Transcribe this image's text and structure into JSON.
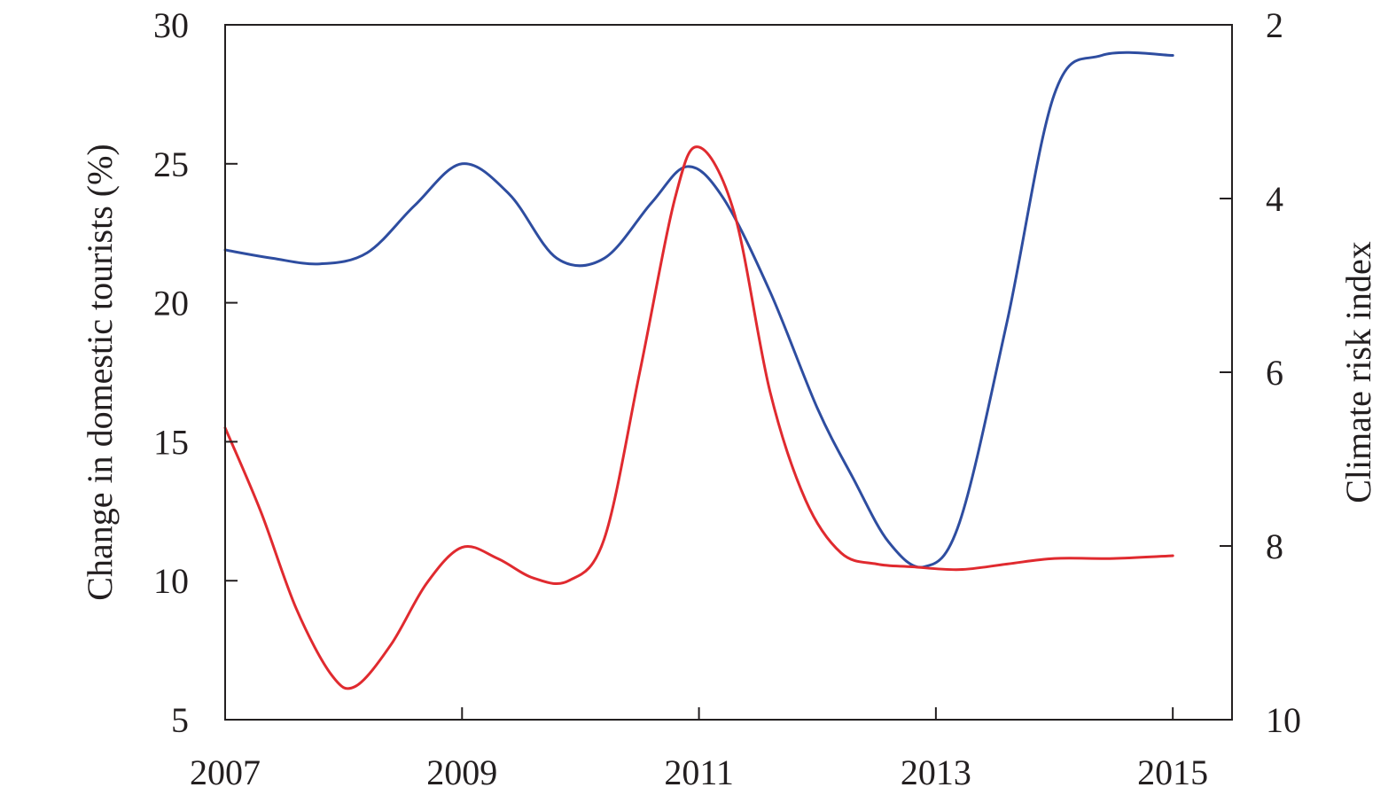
{
  "chart_data": {
    "type": "line",
    "x_axis": {
      "label": "",
      "min": 2007,
      "max": 2015.5,
      "ticks": [
        2007,
        2009,
        2011,
        2013,
        2015
      ],
      "tick_labels": [
        "2007",
        "2009",
        "2011",
        "2013",
        "2015"
      ]
    },
    "y_axis_left": {
      "label": "Change in domestic tourists (%)",
      "min": 5,
      "max": 30,
      "ticks": [
        5,
        10,
        15,
        20,
        25,
        30
      ],
      "tick_labels": [
        "5",
        "10",
        "15",
        "20",
        "25",
        "30"
      ]
    },
    "y_axis_right": {
      "label": "Climate risk index",
      "min": 2,
      "max": 10,
      "inverted": true,
      "ticks": [
        2,
        4,
        6,
        8,
        10
      ],
      "tick_labels": [
        "2",
        "4",
        "6",
        "8",
        "10"
      ]
    },
    "series": [
      {
        "axis": "left",
        "color": "#2e4da0",
        "points": [
          [
            2007,
            21.9
          ],
          [
            2007.4,
            21.6
          ],
          [
            2007.8,
            21.4
          ],
          [
            2008.2,
            21.8
          ],
          [
            2008.6,
            23.5
          ],
          [
            2009,
            25.0
          ],
          [
            2009.4,
            23.9
          ],
          [
            2009.8,
            21.6
          ],
          [
            2010.2,
            21.6
          ],
          [
            2010.6,
            23.6
          ],
          [
            2010.9,
            24.9
          ],
          [
            2011.2,
            23.8
          ],
          [
            2011.6,
            20.4
          ],
          [
            2012,
            16.2
          ],
          [
            2012.3,
            13.7
          ],
          [
            2012.6,
            11.4
          ],
          [
            2012.9,
            10.5
          ],
          [
            2013.2,
            12.1
          ],
          [
            2013.6,
            19.3
          ],
          [
            2014,
            27.5
          ],
          [
            2014.4,
            28.9
          ],
          [
            2015,
            28.9
          ]
        ]
      },
      {
        "axis": "left",
        "color": "#e02a2f",
        "points": [
          [
            2007,
            15.5
          ],
          [
            2007.3,
            12.5
          ],
          [
            2007.6,
            9.0
          ],
          [
            2007.9,
            6.6
          ],
          [
            2008.1,
            6.2
          ],
          [
            2008.4,
            7.7
          ],
          [
            2008.7,
            9.9
          ],
          [
            2009,
            11.2
          ],
          [
            2009.3,
            10.8
          ],
          [
            2009.6,
            10.1
          ],
          [
            2009.9,
            10.0
          ],
          [
            2010.2,
            11.5
          ],
          [
            2010.5,
            17.5
          ],
          [
            2010.8,
            23.8
          ],
          [
            2011,
            25.6
          ],
          [
            2011.3,
            23.2
          ],
          [
            2011.6,
            16.8
          ],
          [
            2011.9,
            12.9
          ],
          [
            2012.2,
            11.0
          ],
          [
            2012.5,
            10.6
          ],
          [
            2012.8,
            10.5
          ],
          [
            2013.2,
            10.4
          ],
          [
            2013.6,
            10.6
          ],
          [
            2014,
            10.8
          ],
          [
            2014.5,
            10.8
          ],
          [
            2015,
            10.9
          ]
        ]
      }
    ]
  }
}
